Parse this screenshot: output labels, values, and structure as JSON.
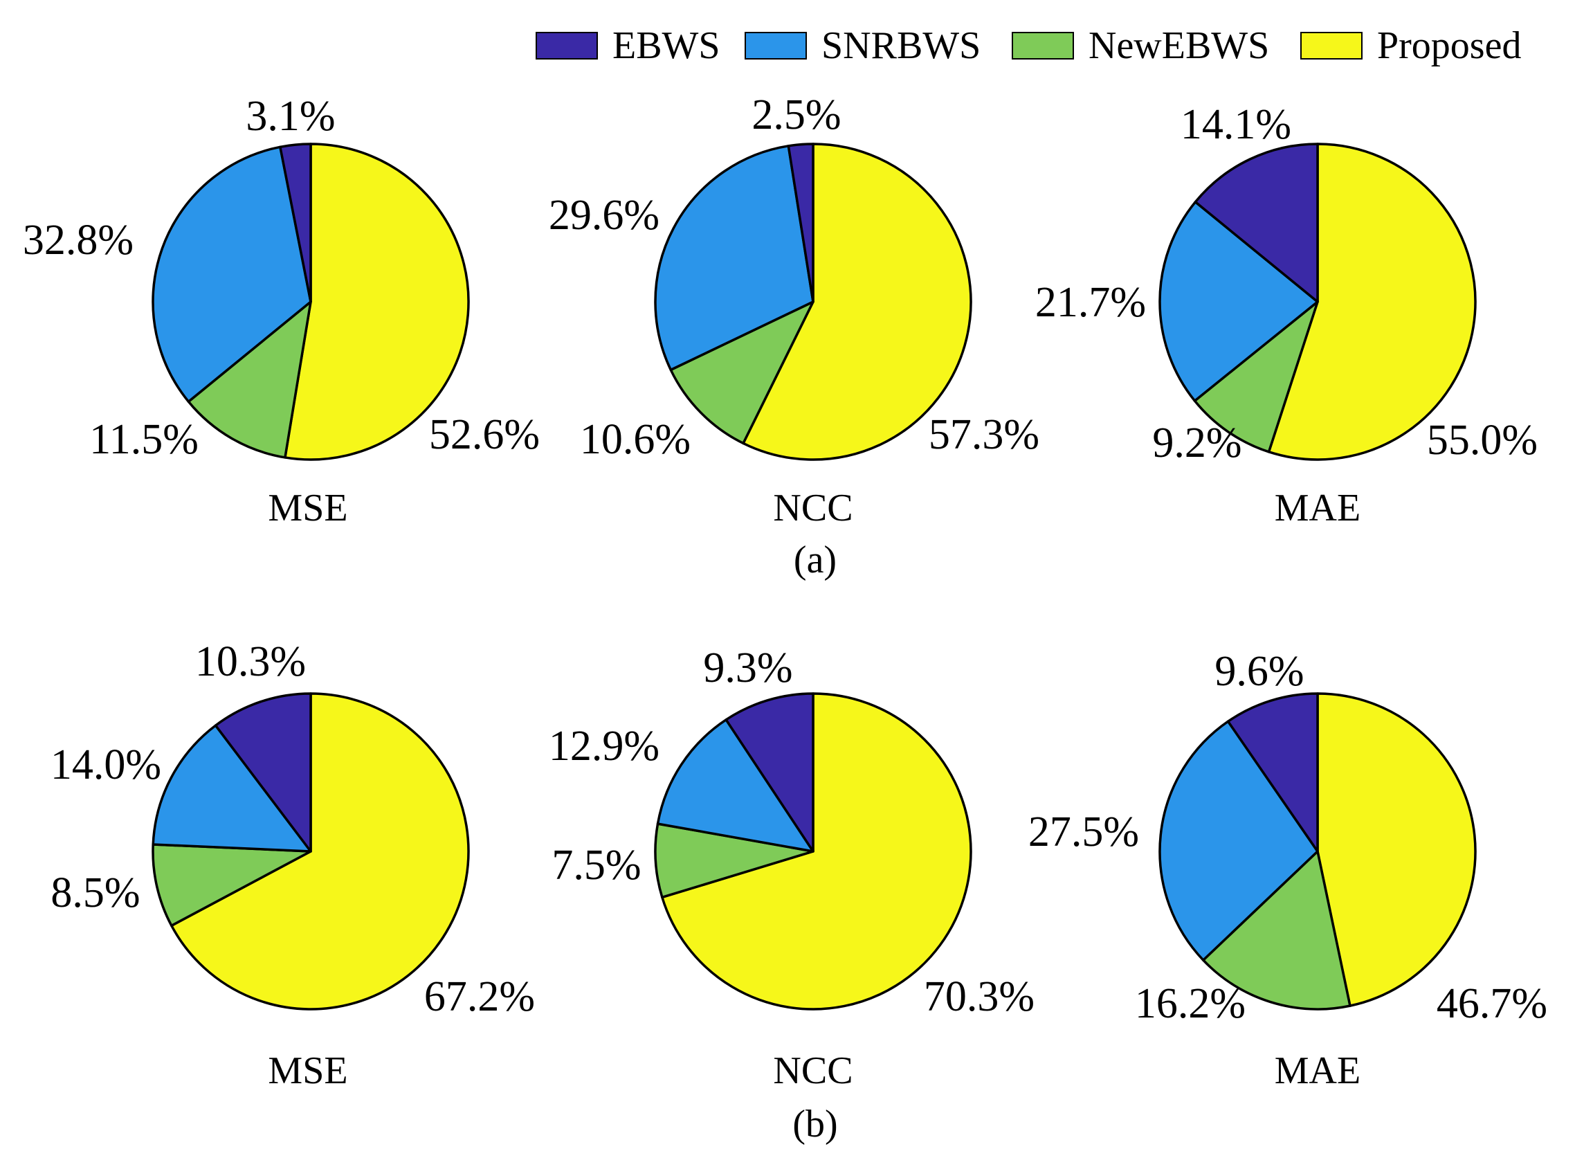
{
  "legend": {
    "items": [
      {
        "label": "EBWS",
        "color": "#3a29a6"
      },
      {
        "label": "SNRBWS",
        "color": "#2b95ea"
      },
      {
        "label": "NewEBWS",
        "color": "#7fcb58"
      },
      {
        "label": "Proposed",
        "color": "#f6f71a"
      }
    ]
  },
  "panels": [
    {
      "label": "(a)"
    },
    {
      "label": "(b)"
    }
  ],
  "chart_data": [
    {
      "type": "pie",
      "panel": "(a)",
      "title": "MSE",
      "slices": [
        {
          "series": "Proposed",
          "value": 52.6,
          "label": "52.6%"
        },
        {
          "series": "NewEBWS",
          "value": 11.5,
          "label": "11.5%"
        },
        {
          "series": "SNRBWS",
          "value": 32.8,
          "label": "32.8%"
        },
        {
          "series": "EBWS",
          "value": 3.1,
          "label": "3.1%"
        }
      ]
    },
    {
      "type": "pie",
      "panel": "(a)",
      "title": "NCC",
      "slices": [
        {
          "series": "Proposed",
          "value": 57.3,
          "label": "57.3%"
        },
        {
          "series": "NewEBWS",
          "value": 10.6,
          "label": "10.6%"
        },
        {
          "series": "SNRBWS",
          "value": 29.6,
          "label": "29.6%"
        },
        {
          "series": "EBWS",
          "value": 2.5,
          "label": "2.5%"
        }
      ]
    },
    {
      "type": "pie",
      "panel": "(a)",
      "title": "MAE",
      "slices": [
        {
          "series": "Proposed",
          "value": 55.0,
          "label": "55.0%"
        },
        {
          "series": "NewEBWS",
          "value": 9.2,
          "label": "9.2%"
        },
        {
          "series": "SNRBWS",
          "value": 21.7,
          "label": "21.7%"
        },
        {
          "series": "EBWS",
          "value": 14.1,
          "label": "14.1%"
        }
      ]
    },
    {
      "type": "pie",
      "panel": "(b)",
      "title": "MSE",
      "slices": [
        {
          "series": "Proposed",
          "value": 67.2,
          "label": "67.2%"
        },
        {
          "series": "NewEBWS",
          "value": 8.5,
          "label": "8.5%"
        },
        {
          "series": "SNRBWS",
          "value": 14.0,
          "label": "14.0%"
        },
        {
          "series": "EBWS",
          "value": 10.3,
          "label": "10.3%"
        }
      ]
    },
    {
      "type": "pie",
      "panel": "(b)",
      "title": "NCC",
      "slices": [
        {
          "series": "Proposed",
          "value": 70.3,
          "label": "70.3%"
        },
        {
          "series": "NewEBWS",
          "value": 7.5,
          "label": "7.5%"
        },
        {
          "series": "SNRBWS",
          "value": 12.9,
          "label": "12.9%"
        },
        {
          "series": "EBWS",
          "value": 9.3,
          "label": "9.3%"
        }
      ]
    },
    {
      "type": "pie",
      "panel": "(b)",
      "title": "MAE",
      "slices": [
        {
          "series": "Proposed",
          "value": 46.7,
          "label": "46.7%"
        },
        {
          "series": "NewEBWS",
          "value": 16.2,
          "label": "16.2%"
        },
        {
          "series": "SNRBWS",
          "value": 27.5,
          "label": "27.5%"
        },
        {
          "series": "EBWS",
          "value": 9.6,
          "label": "9.6%"
        }
      ]
    }
  ]
}
